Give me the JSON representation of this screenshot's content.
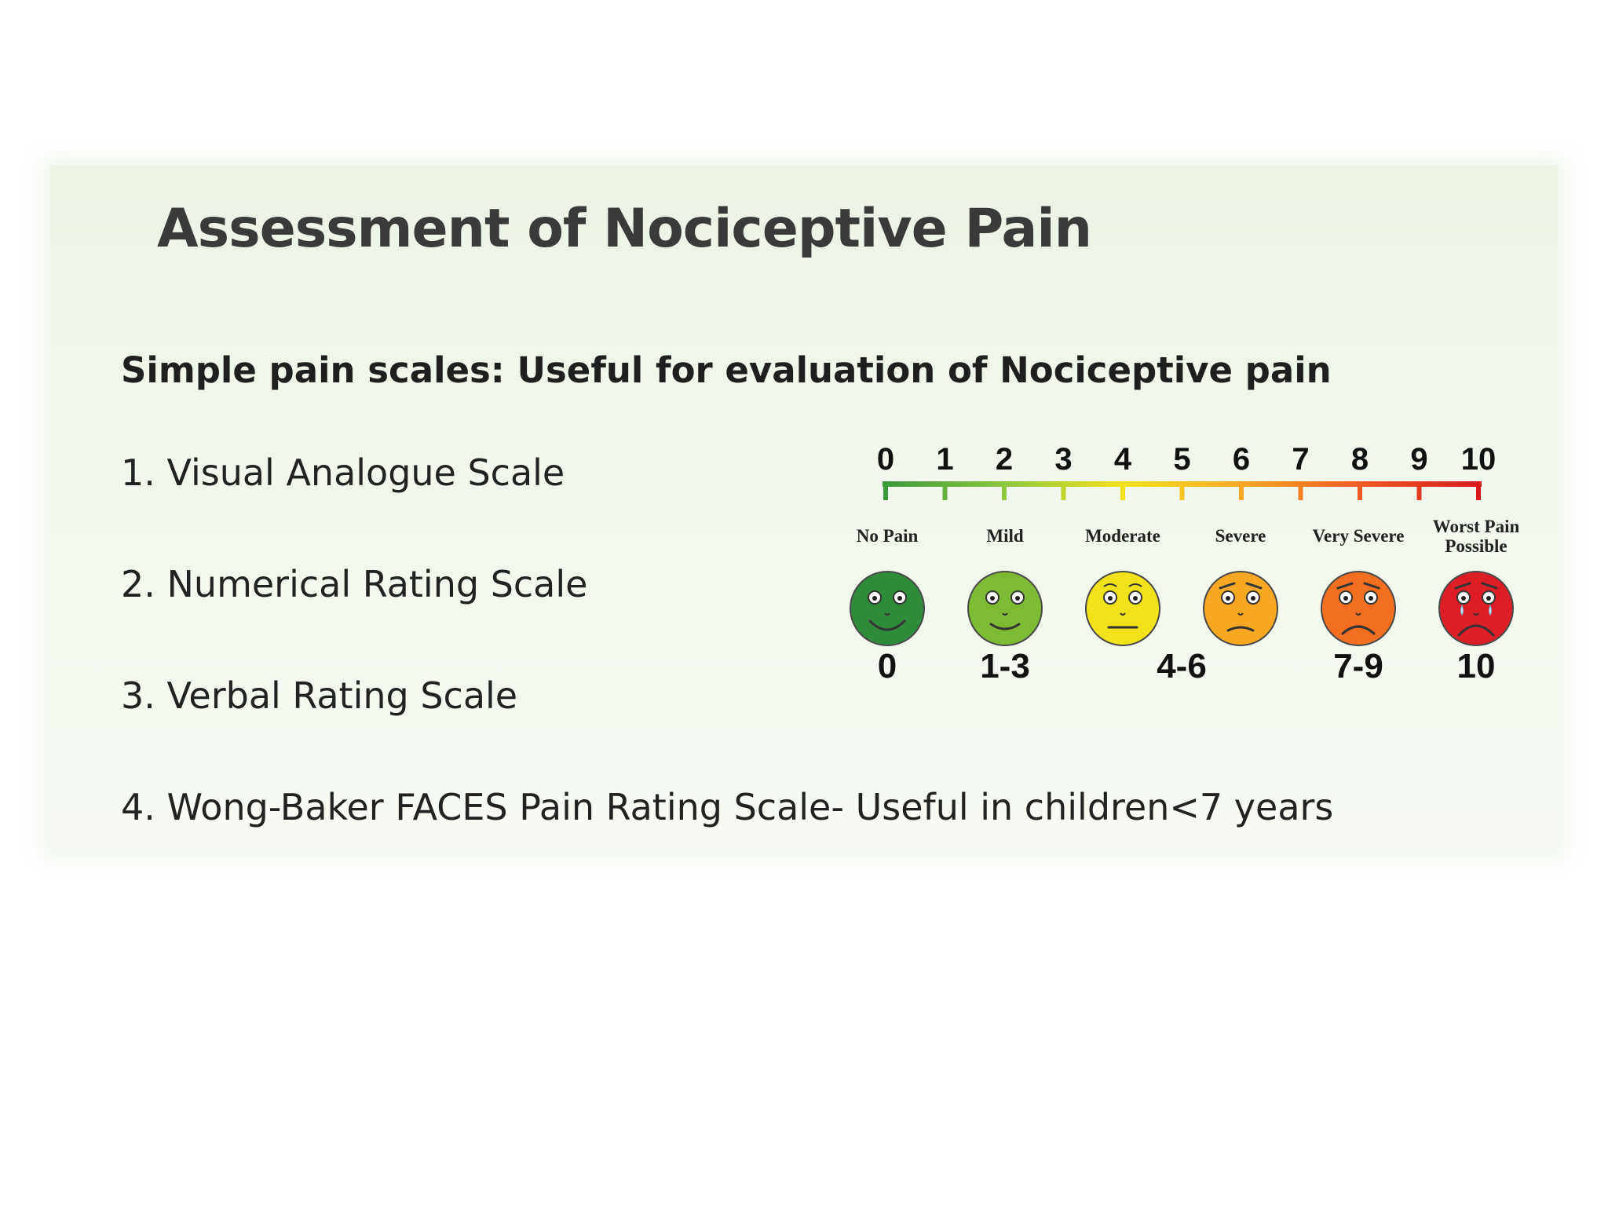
{
  "slide": {
    "title": "Assessment of Nociceptive Pain",
    "subtitle": "Simple pain scales: Useful for evaluation of Nociceptive pain",
    "items": [
      {
        "label": "1. Visual Analogue Scale"
      },
      {
        "label": "2. Numerical Rating Scale"
      },
      {
        "label": "3. Verbal Rating Scale"
      },
      {
        "label": "4. Wong-Baker FACES Pain Rating Scale- Useful in children<7 years"
      }
    ]
  },
  "pain_scale": {
    "numbers": [
      "0",
      "1",
      "2",
      "3",
      "4",
      "5",
      "6",
      "7",
      "8",
      "9",
      "10"
    ],
    "gradient_colors": [
      "#3a9a3a",
      "#8dc63f",
      "#f2e21a",
      "#f7a823",
      "#f15a24",
      "#d7191c"
    ],
    "faces": [
      {
        "label": "No Pain",
        "range": "0",
        "color": "#2e8b3a",
        "mood": "happy",
        "icon": "happy-face-icon"
      },
      {
        "label": "Mild",
        "range": "1-3",
        "color": "#7dbb35",
        "mood": "smile",
        "icon": "smiling-face-icon"
      },
      {
        "label": "Moderate",
        "range": "",
        "color": "#f2e21a",
        "mood": "neutral",
        "icon": "neutral-face-icon"
      },
      {
        "label": "Severe",
        "range": "4-6",
        "color": "#f7a823",
        "mood": "frown",
        "icon": "frowning-face-icon"
      },
      {
        "label": "Very Severe",
        "range": "7-9",
        "color": "#f26f21",
        "mood": "sad",
        "icon": "sad-face-icon"
      },
      {
        "label": "Worst Pain Possible",
        "range": "10",
        "color": "#dc1f26",
        "mood": "crying",
        "icon": "crying-face-icon"
      }
    ]
  }
}
